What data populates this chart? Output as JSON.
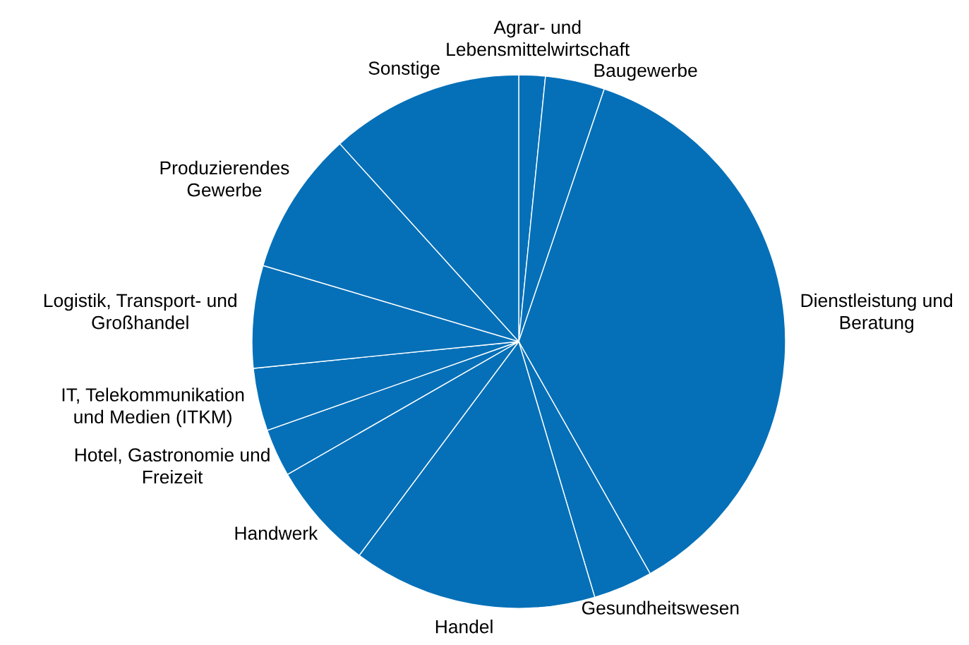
{
  "chart_data": {
    "type": "pie",
    "categories": [
      "Agrar- und\nLebensmittelwirtschaft",
      "Baugewerbe",
      "Dienstleistung und\nBeratung",
      "Gesundheitswesen",
      "Handel",
      "Handwerk",
      "Hotel, Gastronomie und\nFreizeit",
      "IT, Telekommunikation\nund Medien (ITKM)",
      "Logistik, Transport- und\nGroßhandel",
      "Produzierendes\nGewerbe",
      "Sonstige"
    ],
    "values": [
      1.6,
      3.6,
      36.6,
      3.6,
      14.8,
      6.5,
      2.9,
      3.8,
      6.2,
      8.7,
      11.7
    ],
    "colors": [
      "#0570b8",
      "#0570b8",
      "#0570b8",
      "#0570b8",
      "#0570b8",
      "#0570b8",
      "#0570b8",
      "#0570b8",
      "#0570b8",
      "#0570b8",
      "#0570b8"
    ]
  }
}
